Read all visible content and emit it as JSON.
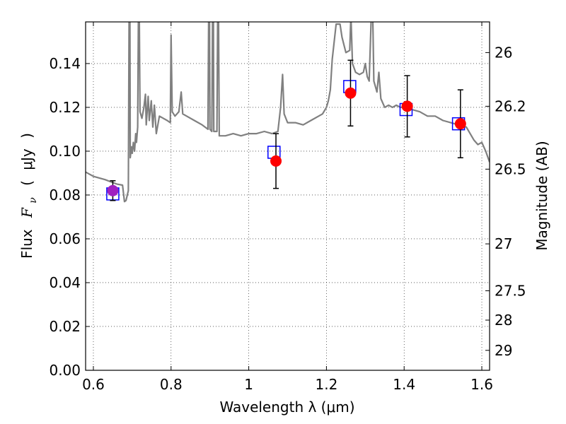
{
  "chart_data": {
    "type": "scatter",
    "xlabel": "Wavelength  λ (μm)",
    "ylabel_parts": [
      "Flux",
      "F",
      "ν",
      "(",
      "μJy",
      ")"
    ],
    "y2label": "Magnitude (AB)",
    "xlim": [
      0.58,
      1.62
    ],
    "ylim": [
      0.0,
      0.159
    ],
    "grid": true,
    "x_ticks": [
      0.6,
      0.8,
      1.0,
      1.2,
      1.4,
      1.6
    ],
    "x_tick_labels": [
      "0.6",
      "0.8",
      "1",
      "1.2",
      "1.4",
      "1.6"
    ],
    "y_ticks": [
      0.0,
      0.02,
      0.04,
      0.06,
      0.08,
      0.1,
      0.12,
      0.14
    ],
    "y_tick_labels": [
      "0.00",
      "0.02",
      "0.04",
      "0.06",
      "0.08",
      "0.10",
      "0.12",
      "0.14"
    ],
    "y2_ticks": [
      {
        "flux": 0.145,
        "label": "26"
      },
      {
        "flux": 0.1205,
        "label": "26.2"
      },
      {
        "flux": 0.0918,
        "label": "26.5"
      },
      {
        "flux": 0.0577,
        "label": "27"
      },
      {
        "flux": 0.0363,
        "label": "27.5"
      },
      {
        "flux": 0.0229,
        "label": "28"
      },
      {
        "flux": 0.0091,
        "label": "29"
      }
    ],
    "colors": {
      "spectrum": "#808080",
      "observed": "#ff0000",
      "model": "#0000ff",
      "overlap": "#a020c0",
      "errorbar": "#000000"
    },
    "model_spectrum": [
      [
        0.58,
        0.0905
      ],
      [
        0.6,
        0.0885
      ],
      [
        0.63,
        0.087
      ],
      [
        0.66,
        0.085
      ],
      [
        0.675,
        0.0845
      ],
      [
        0.68,
        0.077
      ],
      [
        0.684,
        0.0775
      ],
      [
        0.69,
        0.082
      ],
      [
        0.692,
        0.165
      ],
      [
        0.694,
        0.165
      ],
      [
        0.695,
        0.097
      ],
      [
        0.698,
        0.102
      ],
      [
        0.7,
        0.099
      ],
      [
        0.703,
        0.104
      ],
      [
        0.706,
        0.1
      ],
      [
        0.709,
        0.108
      ],
      [
        0.711,
        0.104
      ],
      [
        0.714,
        0.111
      ],
      [
        0.716,
        0.165
      ],
      [
        0.718,
        0.165
      ],
      [
        0.72,
        0.118
      ],
      [
        0.725,
        0.115
      ],
      [
        0.73,
        0.12
      ],
      [
        0.734,
        0.126
      ],
      [
        0.736,
        0.112
      ],
      [
        0.741,
        0.125
      ],
      [
        0.744,
        0.114
      ],
      [
        0.749,
        0.123
      ],
      [
        0.753,
        0.111
      ],
      [
        0.757,
        0.121
      ],
      [
        0.762,
        0.108
      ],
      [
        0.77,
        0.116
      ],
      [
        0.78,
        0.115
      ],
      [
        0.79,
        0.114
      ],
      [
        0.798,
        0.113
      ],
      [
        0.8,
        0.153
      ],
      [
        0.803,
        0.118
      ],
      [
        0.81,
        0.116
      ],
      [
        0.82,
        0.118
      ],
      [
        0.826,
        0.127
      ],
      [
        0.83,
        0.117
      ],
      [
        0.84,
        0.116
      ],
      [
        0.86,
        0.114
      ],
      [
        0.88,
        0.112
      ],
      [
        0.895,
        0.11
      ],
      [
        0.897,
        0.165
      ],
      [
        0.899,
        0.165
      ],
      [
        0.9,
        0.11
      ],
      [
        0.905,
        0.109
      ],
      [
        0.907,
        0.165
      ],
      [
        0.909,
        0.165
      ],
      [
        0.91,
        0.109
      ],
      [
        0.918,
        0.109
      ],
      [
        0.92,
        0.165
      ],
      [
        0.922,
        0.165
      ],
      [
        0.924,
        0.107
      ],
      [
        0.94,
        0.107
      ],
      [
        0.96,
        0.108
      ],
      [
        0.98,
        0.107
      ],
      [
        1.0,
        0.108
      ],
      [
        1.02,
        0.108
      ],
      [
        1.04,
        0.109
      ],
      [
        1.06,
        0.108
      ],
      [
        1.075,
        0.109
      ],
      [
        1.082,
        0.12
      ],
      [
        1.087,
        0.135
      ],
      [
        1.091,
        0.117
      ],
      [
        1.1,
        0.113
      ],
      [
        1.12,
        0.113
      ],
      [
        1.14,
        0.112
      ],
      [
        1.16,
        0.114
      ],
      [
        1.18,
        0.116
      ],
      [
        1.19,
        0.117
      ],
      [
        1.2,
        0.12
      ],
      [
        1.205,
        0.123
      ],
      [
        1.21,
        0.128
      ],
      [
        1.215,
        0.142
      ],
      [
        1.225,
        0.158
      ],
      [
        1.235,
        0.158
      ],
      [
        1.24,
        0.152
      ],
      [
        1.25,
        0.145
      ],
      [
        1.26,
        0.146
      ],
      [
        1.263,
        0.162
      ],
      [
        1.267,
        0.14
      ],
      [
        1.275,
        0.136
      ],
      [
        1.285,
        0.135
      ],
      [
        1.295,
        0.136
      ],
      [
        1.3,
        0.14
      ],
      [
        1.305,
        0.134
      ],
      [
        1.31,
        0.132
      ],
      [
        1.316,
        0.165
      ],
      [
        1.319,
        0.165
      ],
      [
        1.322,
        0.132
      ],
      [
        1.33,
        0.127
      ],
      [
        1.335,
        0.136
      ],
      [
        1.34,
        0.124
      ],
      [
        1.345,
        0.122
      ],
      [
        1.35,
        0.12
      ],
      [
        1.36,
        0.121
      ],
      [
        1.37,
        0.12
      ],
      [
        1.38,
        0.121
      ],
      [
        1.39,
        0.12
      ],
      [
        1.4,
        0.12
      ],
      [
        1.41,
        0.122
      ],
      [
        1.42,
        0.119
      ],
      [
        1.44,
        0.118
      ],
      [
        1.46,
        0.116
      ],
      [
        1.48,
        0.116
      ],
      [
        1.5,
        0.114
      ],
      [
        1.52,
        0.113
      ],
      [
        1.54,
        0.112
      ],
      [
        1.56,
        0.111
      ],
      [
        1.58,
        0.105
      ],
      [
        1.59,
        0.103
      ],
      [
        1.6,
        0.104
      ],
      [
        1.61,
        0.1
      ],
      [
        1.62,
        0.095
      ]
    ],
    "series": [
      {
        "role": "observed photometry with error bars",
        "marker": "circle",
        "points": [
          {
            "x": 0.65,
            "y": 0.082,
            "yerr": 0.0045
          },
          {
            "x": 1.07,
            "y": 0.0955,
            "yerr": 0.0125
          },
          {
            "x": 1.262,
            "y": 0.1265,
            "yerr": 0.015
          },
          {
            "x": 1.408,
            "y": 0.1205,
            "yerr": 0.014
          },
          {
            "x": 1.545,
            "y": 0.1125,
            "yerr": 0.0155
          }
        ]
      },
      {
        "role": "model synthetic photometry",
        "marker": "square",
        "points": [
          {
            "x": 0.65,
            "y": 0.0805
          },
          {
            "x": 1.065,
            "y": 0.0995
          },
          {
            "x": 1.26,
            "y": 0.1295
          },
          {
            "x": 1.405,
            "y": 0.119
          },
          {
            "x": 1.54,
            "y": 0.1125
          }
        ]
      }
    ]
  }
}
